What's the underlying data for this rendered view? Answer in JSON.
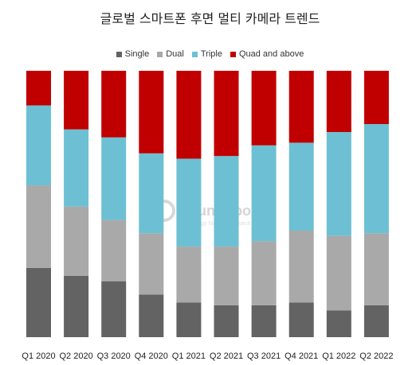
{
  "title": "글로벌 스마트폰 후면 멀티 카메라 트렌드",
  "watermark": {
    "brand": "Counterpoint",
    "tagline": "Technology Market Research"
  },
  "chart_data": {
    "type": "bar",
    "stacked": true,
    "normalized_percent": true,
    "categories": [
      "Q1 2020",
      "Q2 2020",
      "Q3 2020",
      "Q4 2020",
      "Q1 2021",
      "Q2 2021",
      "Q3 2021",
      "Q4 2021",
      "Q1 2022",
      "Q2 2022"
    ],
    "series": [
      {
        "name": "Single",
        "color": "#636363",
        "values": [
          26,
          23,
          21,
          16,
          13,
          12,
          12,
          13,
          10,
          12
        ]
      },
      {
        "name": "Dual",
        "color": "#a9a9a9",
        "values": [
          31,
          26,
          23,
          23,
          21,
          22,
          24,
          27,
          28,
          27
        ]
      },
      {
        "name": "Triple",
        "color": "#6dc0d3",
        "values": [
          30,
          29,
          31,
          30,
          33,
          34,
          36,
          33,
          39,
          41
        ]
      },
      {
        "name": "Quad and above",
        "color": "#c00000",
        "values": [
          13,
          22,
          25,
          31,
          33,
          32,
          28,
          27,
          23,
          20
        ]
      }
    ],
    "ylim": [
      0,
      100
    ],
    "legend_position": "top",
    "grid": false
  }
}
